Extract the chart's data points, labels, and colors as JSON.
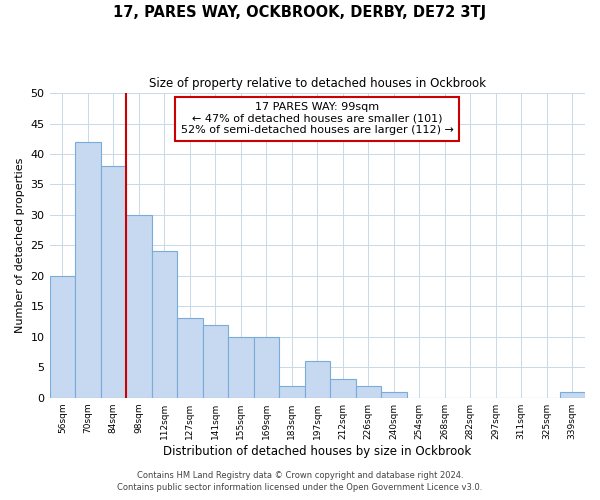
{
  "title": "17, PARES WAY, OCKBROOK, DERBY, DE72 3TJ",
  "subtitle": "Size of property relative to detached houses in Ockbrook",
  "xlabel": "Distribution of detached houses by size in Ockbrook",
  "ylabel": "Number of detached properties",
  "bar_labels": [
    "56sqm",
    "70sqm",
    "84sqm",
    "98sqm",
    "112sqm",
    "127sqm",
    "141sqm",
    "155sqm",
    "169sqm",
    "183sqm",
    "197sqm",
    "212sqm",
    "226sqm",
    "240sqm",
    "254sqm",
    "268sqm",
    "282sqm",
    "297sqm",
    "311sqm",
    "325sqm",
    "339sqm"
  ],
  "bar_values": [
    20,
    42,
    38,
    30,
    24,
    13,
    12,
    10,
    10,
    2,
    6,
    3,
    2,
    1,
    0,
    0,
    0,
    0,
    0,
    0,
    1
  ],
  "bar_color": "#c6d9f0",
  "bar_edge_color": "#7aacda",
  "vline_color": "#cc0000",
  "vline_index": 2.5,
  "ylim": [
    0,
    50
  ],
  "yticks": [
    0,
    5,
    10,
    15,
    20,
    25,
    30,
    35,
    40,
    45,
    50
  ],
  "annotation_text": "17 PARES WAY: 99sqm\n← 47% of detached houses are smaller (101)\n52% of semi-detached houses are larger (112) →",
  "annotation_box_color": "#ffffff",
  "annotation_box_edge_color": "#cc0000",
  "footer_line1": "Contains HM Land Registry data © Crown copyright and database right 2024.",
  "footer_line2": "Contains public sector information licensed under the Open Government Licence v3.0.",
  "background_color": "#ffffff",
  "grid_color": "#c8d8e8"
}
